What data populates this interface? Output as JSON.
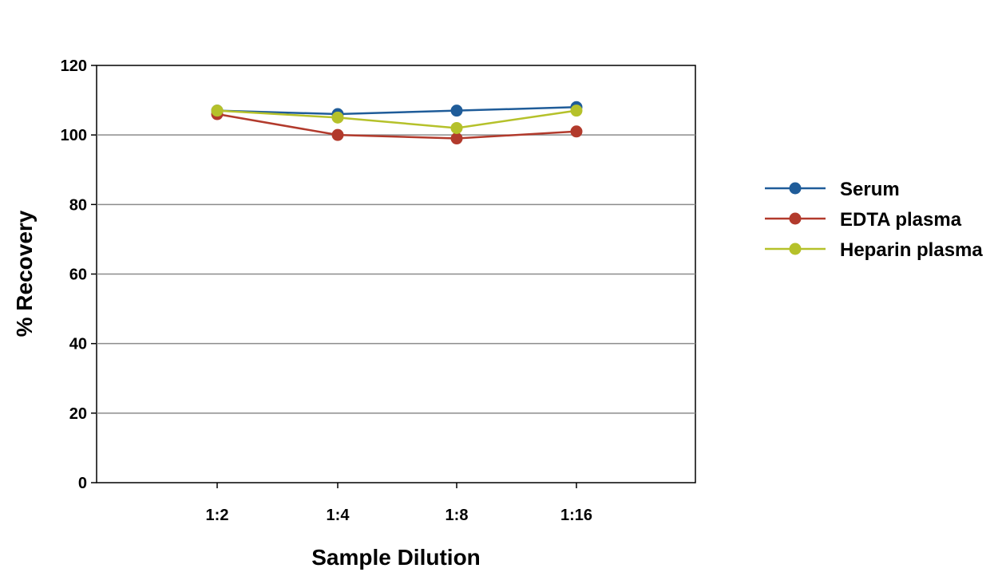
{
  "chart_data": {
    "type": "line",
    "title": "",
    "xlabel": "Sample Dilution",
    "ylabel": "% Recovery",
    "categories": [
      "1:2",
      "1:4",
      "1:8",
      "1:16"
    ],
    "ylim": [
      0,
      120
    ],
    "yticks": [
      0,
      20,
      40,
      60,
      80,
      100,
      120
    ],
    "grid": true,
    "legend_position": "right",
    "series": [
      {
        "name": "Serum",
        "color": "#1f5c99",
        "values": [
          107,
          106,
          107,
          108
        ]
      },
      {
        "name": "EDTA plasma",
        "color": "#b23a2c",
        "values": [
          106,
          100,
          99,
          101
        ]
      },
      {
        "name": "Heparin plasma",
        "color": "#b5c12a",
        "values": [
          107,
          105,
          102,
          107
        ]
      }
    ]
  }
}
